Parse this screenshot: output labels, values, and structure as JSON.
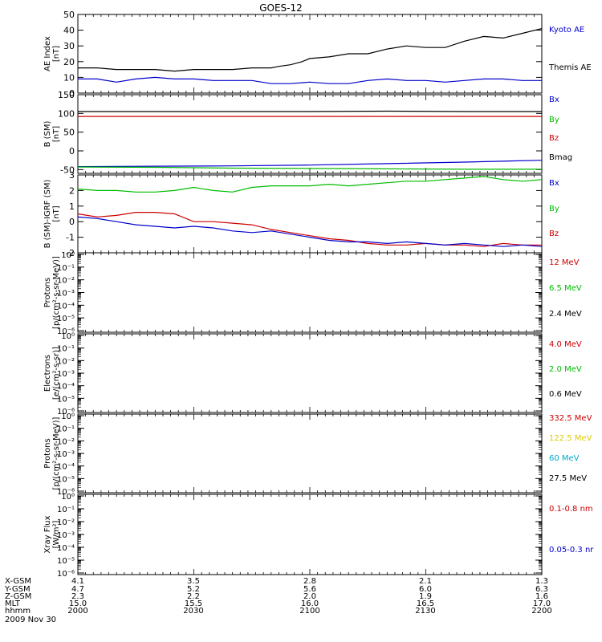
{
  "title": "GOES-12",
  "chart_data": [
    {
      "id": "ae",
      "type": "line",
      "ylabel": [
        "AE Index",
        "[nT]"
      ],
      "ylim": [
        0,
        50
      ],
      "yticks": [
        "0",
        "10",
        "20",
        "30",
        "40",
        "50"
      ],
      "legend": [
        {
          "label": "Kyoto AE",
          "color": "#0000cc"
        },
        {
          "label": "Themis AE",
          "color": "#000000"
        }
      ],
      "series": [
        {
          "color": "#000000",
          "x": [
            0,
            5,
            10,
            15,
            20,
            25,
            30,
            35,
            40,
            45,
            50,
            52,
            55,
            58,
            60,
            65,
            70,
            75,
            80,
            85,
            90,
            95,
            100,
            105,
            110,
            115,
            120
          ],
          "y": [
            16,
            16,
            15,
            15,
            15,
            14,
            15,
            15,
            15,
            16,
            16,
            17,
            18,
            20,
            22,
            23,
            25,
            25,
            28,
            30,
            29,
            29,
            33,
            36,
            35,
            38,
            41
          ]
        },
        {
          "color": "#0000cc",
          "x": [
            0,
            5,
            10,
            15,
            20,
            25,
            30,
            35,
            40,
            45,
            50,
            55,
            60,
            65,
            70,
            75,
            80,
            85,
            90,
            95,
            100,
            105,
            110,
            115,
            120
          ],
          "y": [
            9,
            9,
            7,
            9,
            10,
            9,
            9,
            8,
            8,
            8,
            6,
            6,
            7,
            6,
            6,
            8,
            9,
            8,
            8,
            7,
            8,
            9,
            9,
            8,
            8
          ]
        }
      ]
    },
    {
      "id": "bsm",
      "type": "line",
      "ylabel": [
        "B (SM)",
        "[nT]"
      ],
      "ylim": [
        -60,
        150
      ],
      "yticks": [
        "-50",
        "0",
        "50",
        "100",
        "150"
      ],
      "yticks_values": [
        -50,
        0,
        50,
        100,
        150
      ],
      "legend": [
        {
          "label": "Bx",
          "color": "#0000cc"
        },
        {
          "label": "By",
          "color": "#00bb00"
        },
        {
          "label": "Bz",
          "color": "#cc0000"
        },
        {
          "label": "Bmag",
          "color": "#000000"
        }
      ],
      "series": [
        {
          "color": "#000000",
          "x": [
            0,
            60,
            80,
            100,
            120
          ],
          "y": [
            105,
            105,
            106,
            105,
            105
          ]
        },
        {
          "color": "#cc0000",
          "x": [
            0,
            60,
            120
          ],
          "y": [
            92,
            92,
            92
          ]
        },
        {
          "color": "#0000cc",
          "x": [
            0,
            20,
            40,
            60,
            80,
            100,
            120
          ],
          "y": [
            -42,
            -41,
            -40,
            -38,
            -34,
            -30,
            -25
          ]
        },
        {
          "color": "#00bb00",
          "x": [
            0,
            20,
            40,
            60,
            80,
            100,
            120
          ],
          "y": [
            -43,
            -44,
            -46,
            -47,
            -48,
            -49,
            -49
          ]
        }
      ]
    },
    {
      "id": "bsm-igrf",
      "type": "line",
      "ylabel": [
        "B (SM)-IGRF (SM)",
        "[nT]"
      ],
      "ylim": [
        -2,
        3
      ],
      "yticks": [
        "-2",
        "-1",
        "0",
        "1",
        "2",
        "3"
      ],
      "yticks_values": [
        -2,
        -1,
        0,
        1,
        2,
        3
      ],
      "legend": [
        {
          "label": "Bx",
          "color": "#0000cc"
        },
        {
          "label": "By",
          "color": "#00bb00"
        },
        {
          "label": "Bz",
          "color": "#cc0000"
        }
      ],
      "series": [
        {
          "color": "#00bb00",
          "x": [
            0,
            5,
            10,
            15,
            20,
            25,
            30,
            35,
            40,
            45,
            50,
            55,
            60,
            65,
            70,
            75,
            80,
            85,
            90,
            95,
            100,
            105,
            110,
            115,
            120
          ],
          "y": [
            2.1,
            2.0,
            2.0,
            1.9,
            1.9,
            2.0,
            2.2,
            2.0,
            1.9,
            2.2,
            2.3,
            2.3,
            2.3,
            2.4,
            2.3,
            2.4,
            2.5,
            2.6,
            2.6,
            2.7,
            2.8,
            2.9,
            2.7,
            2.6,
            2.7
          ]
        },
        {
          "color": "#cc0000",
          "x": [
            0,
            5,
            10,
            15,
            20,
            25,
            30,
            35,
            40,
            45,
            50,
            55,
            60,
            65,
            70,
            75,
            80,
            85,
            90,
            95,
            100,
            105,
            110,
            115,
            120
          ],
          "y": [
            0.5,
            0.3,
            0.4,
            0.6,
            0.6,
            0.5,
            0.0,
            0.0,
            -0.1,
            -0.2,
            -0.5,
            -0.7,
            -0.9,
            -1.1,
            -1.2,
            -1.4,
            -1.5,
            -1.5,
            -1.4,
            -1.5,
            -1.5,
            -1.6,
            -1.4,
            -1.5,
            -1.5
          ]
        },
        {
          "color": "#0000cc",
          "x": [
            0,
            5,
            10,
            15,
            20,
            25,
            30,
            35,
            40,
            45,
            50,
            55,
            60,
            65,
            70,
            75,
            80,
            85,
            90,
            95,
            100,
            105,
            110,
            115,
            120
          ],
          "y": [
            0.3,
            0.2,
            0.0,
            -0.2,
            -0.3,
            -0.4,
            -0.3,
            -0.4,
            -0.6,
            -0.7,
            -0.6,
            -0.8,
            -1.0,
            -1.2,
            -1.3,
            -1.3,
            -1.4,
            -1.3,
            -1.4,
            -1.5,
            -1.4,
            -1.5,
            -1.6,
            -1.5,
            -1.6
          ]
        }
      ]
    },
    {
      "id": "protons1",
      "type": "line",
      "log": true,
      "ylabel": [
        "Protons",
        "[p/(cm²-s-sr-MeV)]"
      ],
      "legend": [
        {
          "label": "12 MeV",
          "color": "#cc0000"
        },
        {
          "label": "6.5 MeV",
          "color": "#00bb00"
        },
        {
          "label": "2.4 MeV",
          "color": "#000000"
        }
      ]
    },
    {
      "id": "electrons",
      "type": "line",
      "log": true,
      "ylabel": [
        "Electrons",
        "[e/(cm²-s-sr)]"
      ],
      "legend": [
        {
          "label": "4.0 MeV",
          "color": "#cc0000"
        },
        {
          "label": "2.0 MeV",
          "color": "#00bb00"
        },
        {
          "label": "0.6 MeV",
          "color": "#000000"
        }
      ]
    },
    {
      "id": "protons2",
      "type": "line",
      "log": true,
      "ylabel": [
        "Protons",
        "[p/(cm²-s-sr-MeV)]"
      ],
      "legend": [
        {
          "label": "332.5 MeV",
          "color": "#cc0000"
        },
        {
          "label": "122.5 MeV",
          "color": "#ddcc00"
        },
        {
          "label": "60 MeV",
          "color": "#00aacc"
        },
        {
          "label": "27.5 MeV",
          "color": "#000000"
        }
      ]
    },
    {
      "id": "xray",
      "type": "line",
      "log": true,
      "ylabel": [
        "Xray Flux",
        "[W/m²]"
      ],
      "legend": [
        {
          "label": "0.1-0.8 nm",
          "color": "#cc0000"
        },
        {
          "label": "0.05-0.3 nr",
          "color": "#0000cc"
        }
      ]
    }
  ],
  "log_ticks": [
    "10⁰",
    "10⁻¹",
    "10⁻²",
    "10⁻³",
    "10⁻⁴",
    "10⁻⁵",
    "10⁻⁶"
  ],
  "footer": {
    "rows": [
      {
        "label": "X-GSM",
        "values": [
          "4.1",
          "3.5",
          "2.8",
          "2.1",
          "1.3"
        ]
      },
      {
        "label": "Y-GSM",
        "values": [
          "4.7",
          "5.2",
          "5.6",
          "6.0",
          "6.3"
        ]
      },
      {
        "label": "Z-GSM",
        "values": [
          "2.3",
          "2.2",
          "2.0",
          "1.9",
          "1.6"
        ]
      },
      {
        "label": "MLT",
        "values": [
          "15.0",
          "15.5",
          "16.0",
          "16.5",
          "17.0"
        ]
      },
      {
        "label": "hhmm",
        "values": [
          "2000",
          "2030",
          "2100",
          "2130",
          "2200"
        ]
      }
    ],
    "date": "2009 Nov 30"
  }
}
